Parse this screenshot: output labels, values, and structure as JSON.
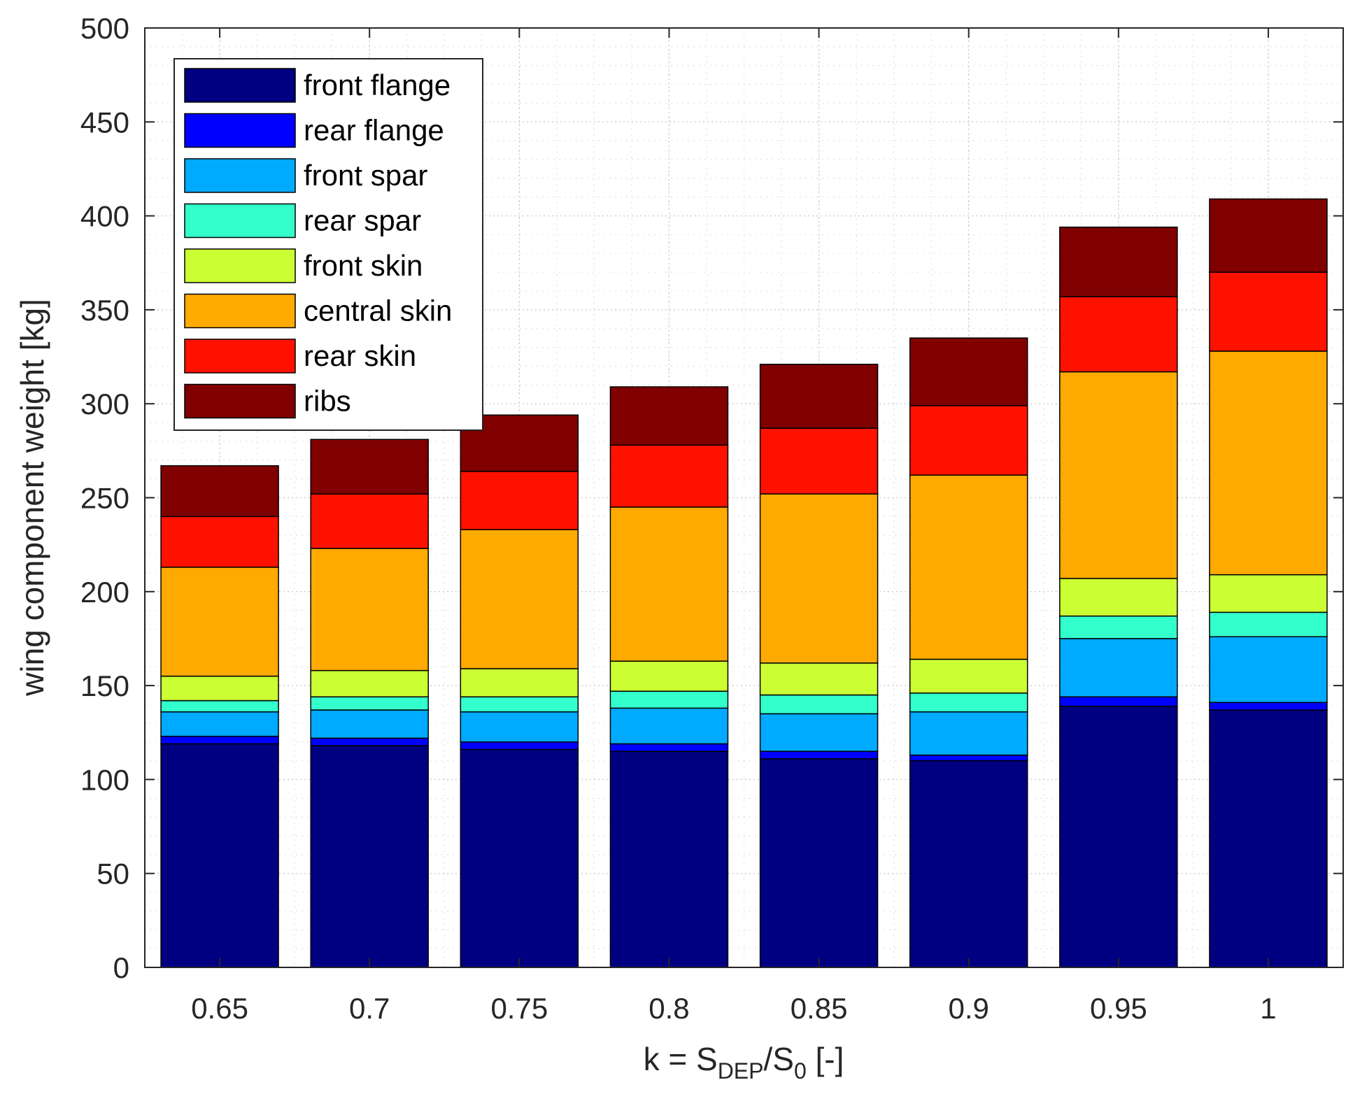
{
  "chart_data": {
    "type": "bar",
    "stacked": true,
    "title": "",
    "xlabel": {
      "prefix": "k = S",
      "sub1": "DEP",
      "mid": "/S",
      "sub2": "0",
      "suffix": " [-]"
    },
    "ylabel": "wing component weight [kg]",
    "ylim": [
      0,
      500
    ],
    "yticks": [
      0,
      50,
      100,
      150,
      200,
      250,
      300,
      350,
      400,
      450,
      500
    ],
    "categories": [
      "0.65",
      "0.7",
      "0.75",
      "0.8",
      "0.85",
      "0.9",
      "0.95",
      "1"
    ],
    "grid": "major and minor",
    "legend_position": "top-left",
    "series": [
      {
        "name": "front flange",
        "color": "#000080",
        "values": [
          119,
          118,
          116,
          115,
          111,
          110,
          139,
          137
        ]
      },
      {
        "name": "rear flange",
        "color": "#0000FF",
        "values": [
          4,
          4,
          4,
          4,
          4,
          3,
          5,
          4
        ]
      },
      {
        "name": "front spar",
        "color": "#00AAFF",
        "values": [
          13,
          15,
          16,
          19,
          20,
          23,
          31,
          35
        ]
      },
      {
        "name": "rear spar",
        "color": "#33FFCC",
        "values": [
          6,
          7,
          8,
          9,
          10,
          10,
          12,
          13
        ]
      },
      {
        "name": "front skin",
        "color": "#CCFF33",
        "values": [
          13,
          14,
          15,
          16,
          17,
          18,
          20,
          20
        ]
      },
      {
        "name": "central skin",
        "color": "#FFAA00",
        "values": [
          58,
          65,
          74,
          82,
          90,
          98,
          110,
          119
        ]
      },
      {
        "name": "rear skin",
        "color": "#FF1100",
        "values": [
          27,
          29,
          31,
          33,
          35,
          37,
          40,
          42
        ]
      },
      {
        "name": "ribs",
        "color": "#800000",
        "values": [
          27,
          29,
          30,
          31,
          34,
          36,
          37,
          39
        ]
      }
    ]
  }
}
